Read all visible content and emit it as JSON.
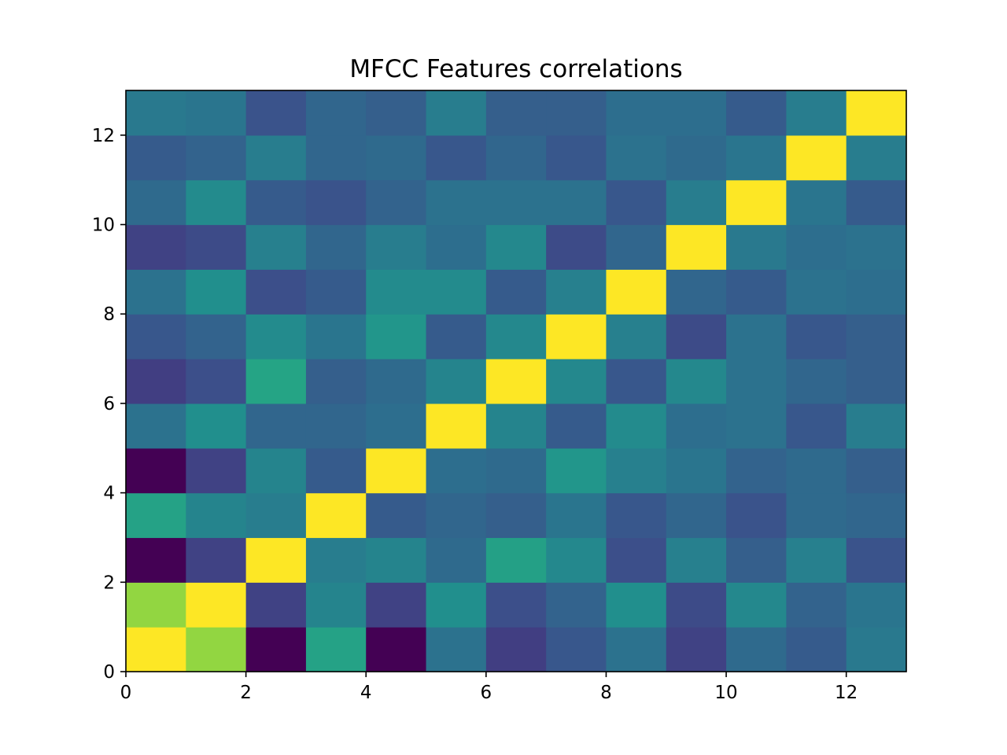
{
  "chart_data": {
    "type": "heatmap",
    "title": "MFCC Features correlations",
    "xlabel": "",
    "ylabel": "",
    "xlim": [
      0,
      13
    ],
    "ylim": [
      0,
      13
    ],
    "xticks": [
      0,
      2,
      4,
      6,
      8,
      10,
      12
    ],
    "yticks": [
      0,
      2,
      4,
      6,
      8,
      10,
      12
    ],
    "colormap": "viridis",
    "value_range": [
      -0.35,
      1.0
    ],
    "grid": false,
    "row_order": "row 0 is the bottom row (y from 0 to 1); columns left to right from x=0",
    "values": [
      [
        1.0,
        0.78,
        -0.35,
        0.43,
        -0.35,
        0.16,
        -0.1,
        0.02,
        0.16,
        -0.08,
        0.12,
        0.04,
        0.2
      ],
      [
        0.78,
        1.0,
        -0.08,
        0.26,
        -0.08,
        0.32,
        -0.02,
        0.08,
        0.32,
        -0.04,
        0.28,
        0.08,
        0.18
      ],
      [
        -0.35,
        -0.08,
        1.0,
        0.22,
        0.26,
        0.12,
        0.42,
        0.28,
        -0.02,
        0.24,
        0.06,
        0.24,
        0.0
      ],
      [
        0.43,
        0.26,
        0.22,
        1.0,
        0.04,
        0.1,
        0.06,
        0.18,
        0.02,
        0.1,
        0.0,
        0.12,
        0.1
      ],
      [
        -0.35,
        -0.08,
        0.26,
        0.04,
        1.0,
        0.14,
        0.12,
        0.36,
        0.24,
        0.18,
        0.08,
        0.12,
        0.06
      ],
      [
        0.16,
        0.32,
        0.1,
        0.1,
        0.14,
        1.0,
        0.26,
        0.04,
        0.3,
        0.14,
        0.16,
        0.02,
        0.22
      ],
      [
        -0.1,
        -0.02,
        0.44,
        0.06,
        0.12,
        0.26,
        1.0,
        0.28,
        0.02,
        0.28,
        0.16,
        0.1,
        0.06
      ],
      [
        0.02,
        0.08,
        0.3,
        0.18,
        0.36,
        0.04,
        0.28,
        1.0,
        0.24,
        -0.04,
        0.16,
        0.02,
        0.06
      ],
      [
        0.16,
        0.32,
        -0.02,
        0.04,
        0.3,
        0.3,
        0.04,
        0.24,
        1.0,
        0.1,
        0.04,
        0.16,
        0.14
      ],
      [
        -0.08,
        -0.04,
        0.24,
        0.1,
        0.22,
        0.14,
        0.28,
        -0.04,
        0.1,
        1.0,
        0.2,
        0.14,
        0.16
      ],
      [
        0.12,
        0.3,
        0.04,
        0.0,
        0.08,
        0.16,
        0.16,
        0.16,
        0.02,
        0.22,
        1.0,
        0.18,
        0.04
      ],
      [
        0.04,
        0.08,
        0.22,
        0.1,
        0.12,
        0.02,
        0.1,
        0.02,
        0.16,
        0.12,
        0.18,
        1.0,
        0.22
      ],
      [
        0.2,
        0.18,
        0.0,
        0.1,
        0.06,
        0.22,
        0.06,
        0.06,
        0.14,
        0.14,
        0.04,
        0.22,
        1.0
      ]
    ]
  }
}
